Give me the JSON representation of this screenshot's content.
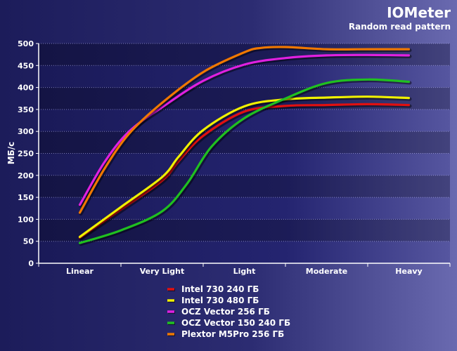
{
  "chart_data": {
    "type": "line",
    "title": "IOMeter",
    "subtitle": "Random read pattern",
    "xlabel": "",
    "ylabel": "МБ/с",
    "categories": [
      "Linear",
      "Very Light",
      "Light",
      "Moderate",
      "Heavy"
    ],
    "ylim": [
      0,
      500
    ],
    "yticks": [
      0,
      50,
      100,
      150,
      200,
      250,
      300,
      350,
      400,
      450,
      500
    ],
    "grid": true,
    "legend_position": "bottom",
    "series": [
      {
        "name": "Intel 730 240 ГБ",
        "color": "#e01010",
        "x": [
          0,
          0.5,
          1,
          1.2,
          1.5,
          2,
          2.5,
          3,
          3.5,
          4
        ],
        "values": [
          58,
          122,
          188,
          232,
          290,
          345,
          358,
          360,
          362,
          360
        ]
      },
      {
        "name": "Intel 730 480 ГБ",
        "color": "#f0f000",
        "x": [
          0,
          0.5,
          1,
          1.2,
          1.5,
          2,
          2.5,
          3,
          3.5,
          4
        ],
        "values": [
          60,
          128,
          196,
          242,
          303,
          357,
          373,
          377,
          379,
          376
        ]
      },
      {
        "name": "OCZ Vector 256 ГБ",
        "color": "#e020e0",
        "x": [
          0,
          0.3,
          0.6,
          1,
          1.5,
          2,
          2.5,
          3,
          3.5,
          4
        ],
        "values": [
          133,
          230,
          300,
          355,
          415,
          452,
          467,
          473,
          474,
          473
        ]
      },
      {
        "name": "OCZ Vector 150 240 ГБ",
        "color": "#20c020",
        "x": [
          0,
          0.5,
          1,
          1.3,
          1.6,
          2,
          2.5,
          3,
          3.5,
          4
        ],
        "values": [
          46,
          75,
          118,
          180,
          265,
          330,
          375,
          410,
          418,
          413
        ]
      },
      {
        "name": "Plextor M5Pro 256 ГБ",
        "color": "#f07800",
        "x": [
          0,
          0.3,
          0.6,
          1,
          1.5,
          2,
          2.2,
          2.5,
          3,
          3.5,
          4
        ],
        "values": [
          115,
          215,
          295,
          365,
          435,
          480,
          490,
          492,
          487,
          487,
          487
        ]
      }
    ]
  }
}
